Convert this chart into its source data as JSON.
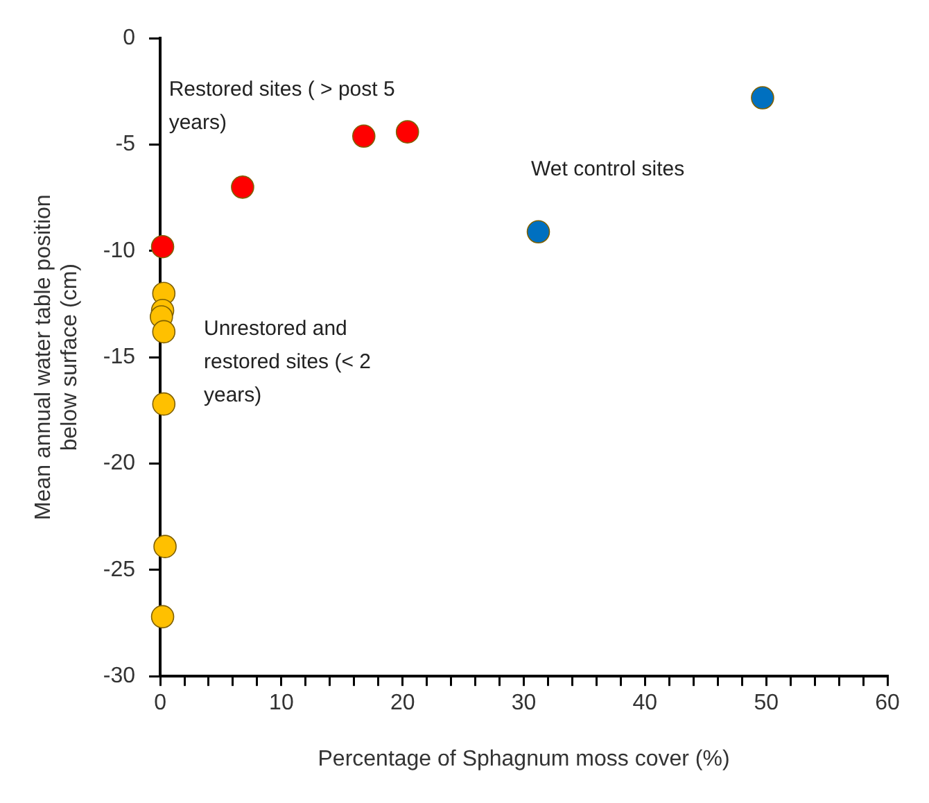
{
  "chart_data": {
    "type": "scatter",
    "xlabel": "Percentage of Sphagnum moss cover (%)",
    "ylabel": "Mean annual water table position below surface (cm)",
    "series": [
      {
        "color": "#ff0000",
        "x": [
          0.2,
          6.8,
          16.8,
          20.4
        ],
        "values": [
          -9.8,
          -7.0,
          -4.6,
          -4.4
        ]
      },
      {
        "color": "#0070c0",
        "x": [
          31.2,
          49.7
        ],
        "values": [
          -9.1,
          -2.8
        ]
      },
      {
        "color": "#ffc000",
        "x": [
          0.3,
          0.2,
          0.1,
          0.3,
          0.3,
          0.4,
          0.2
        ],
        "values": [
          -12.0,
          -12.8,
          -13.1,
          -13.8,
          -17.2,
          -23.9,
          -27.2
        ]
      }
    ],
    "xlim": [
      0,
      60
    ],
    "ylim": [
      -30,
      0
    ],
    "xticks": [
      0,
      {
        "value": 2,
        "label": null
      },
      {
        "value": 4,
        "label": null
      },
      {
        "value": 6,
        "label": null
      },
      {
        "value": 8,
        "label": null
      },
      10,
      {
        "value": 12,
        "label": null
      },
      {
        "value": 14,
        "label": null
      },
      {
        "value": 16,
        "label": null
      },
      {
        "value": 18,
        "label": null
      },
      20,
      {
        "value": 22,
        "label": null
      },
      {
        "value": 24,
        "label": null
      },
      {
        "value": 26,
        "label": null
      },
      {
        "value": 28,
        "label": null
      },
      30,
      {
        "value": 32,
        "label": null
      },
      {
        "value": 34,
        "label": null
      },
      {
        "value": 36,
        "label": null
      },
      {
        "value": 38,
        "label": null
      },
      40,
      {
        "value": 42,
        "label": null
      },
      {
        "value": 44,
        "label": null
      },
      {
        "value": 46,
        "label": null
      },
      {
        "value": 48,
        "label": null
      },
      50,
      {
        "value": 52,
        "label": null
      },
      {
        "value": 54,
        "label": null
      },
      {
        "value": 56,
        "label": null
      },
      {
        "value": 58,
        "label": null
      },
      60
    ],
    "yticks": [
      -30,
      -25,
      -20,
      -15,
      -10,
      -5,
      0
    ],
    "annotations": [
      "Restored sites ( > post 5 years)",
      "Wet control sites",
      "Unrestored and restored sites (< 2 years)"
    ],
    "marker": "circle",
    "grid": false,
    "legend": false
  }
}
